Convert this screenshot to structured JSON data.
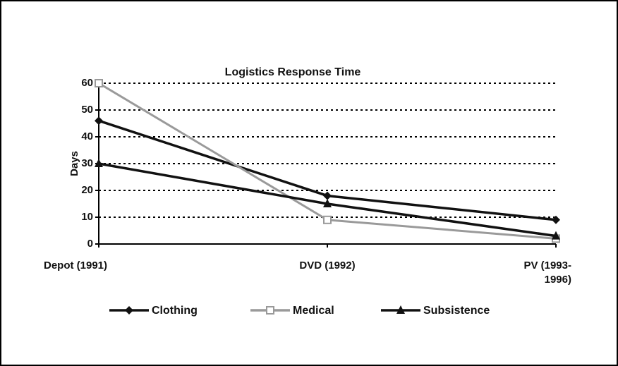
{
  "chart_data": {
    "type": "line",
    "title": "Logistics Response Time",
    "y_label": "Days",
    "categories": [
      "Depot  (1991)",
      "DVD (1992)",
      "PV (1993-1996)"
    ],
    "series": [
      {
        "name": "Clothing",
        "color": "#111111",
        "marker": "diamond",
        "values": [
          46,
          18,
          9
        ]
      },
      {
        "name": "Medical",
        "color": "#9a9a9a",
        "marker": "square",
        "values": [
          60,
          9,
          2
        ]
      },
      {
        "name": "Subsistence",
        "color": "#111111",
        "marker": "triangle",
        "values": [
          30,
          15,
          3
        ]
      }
    ],
    "ylim": [
      0,
      60
    ],
    "yticks": [
      0,
      10,
      20,
      30,
      40,
      50,
      60
    ],
    "grid": true,
    "legend": "bottom"
  }
}
